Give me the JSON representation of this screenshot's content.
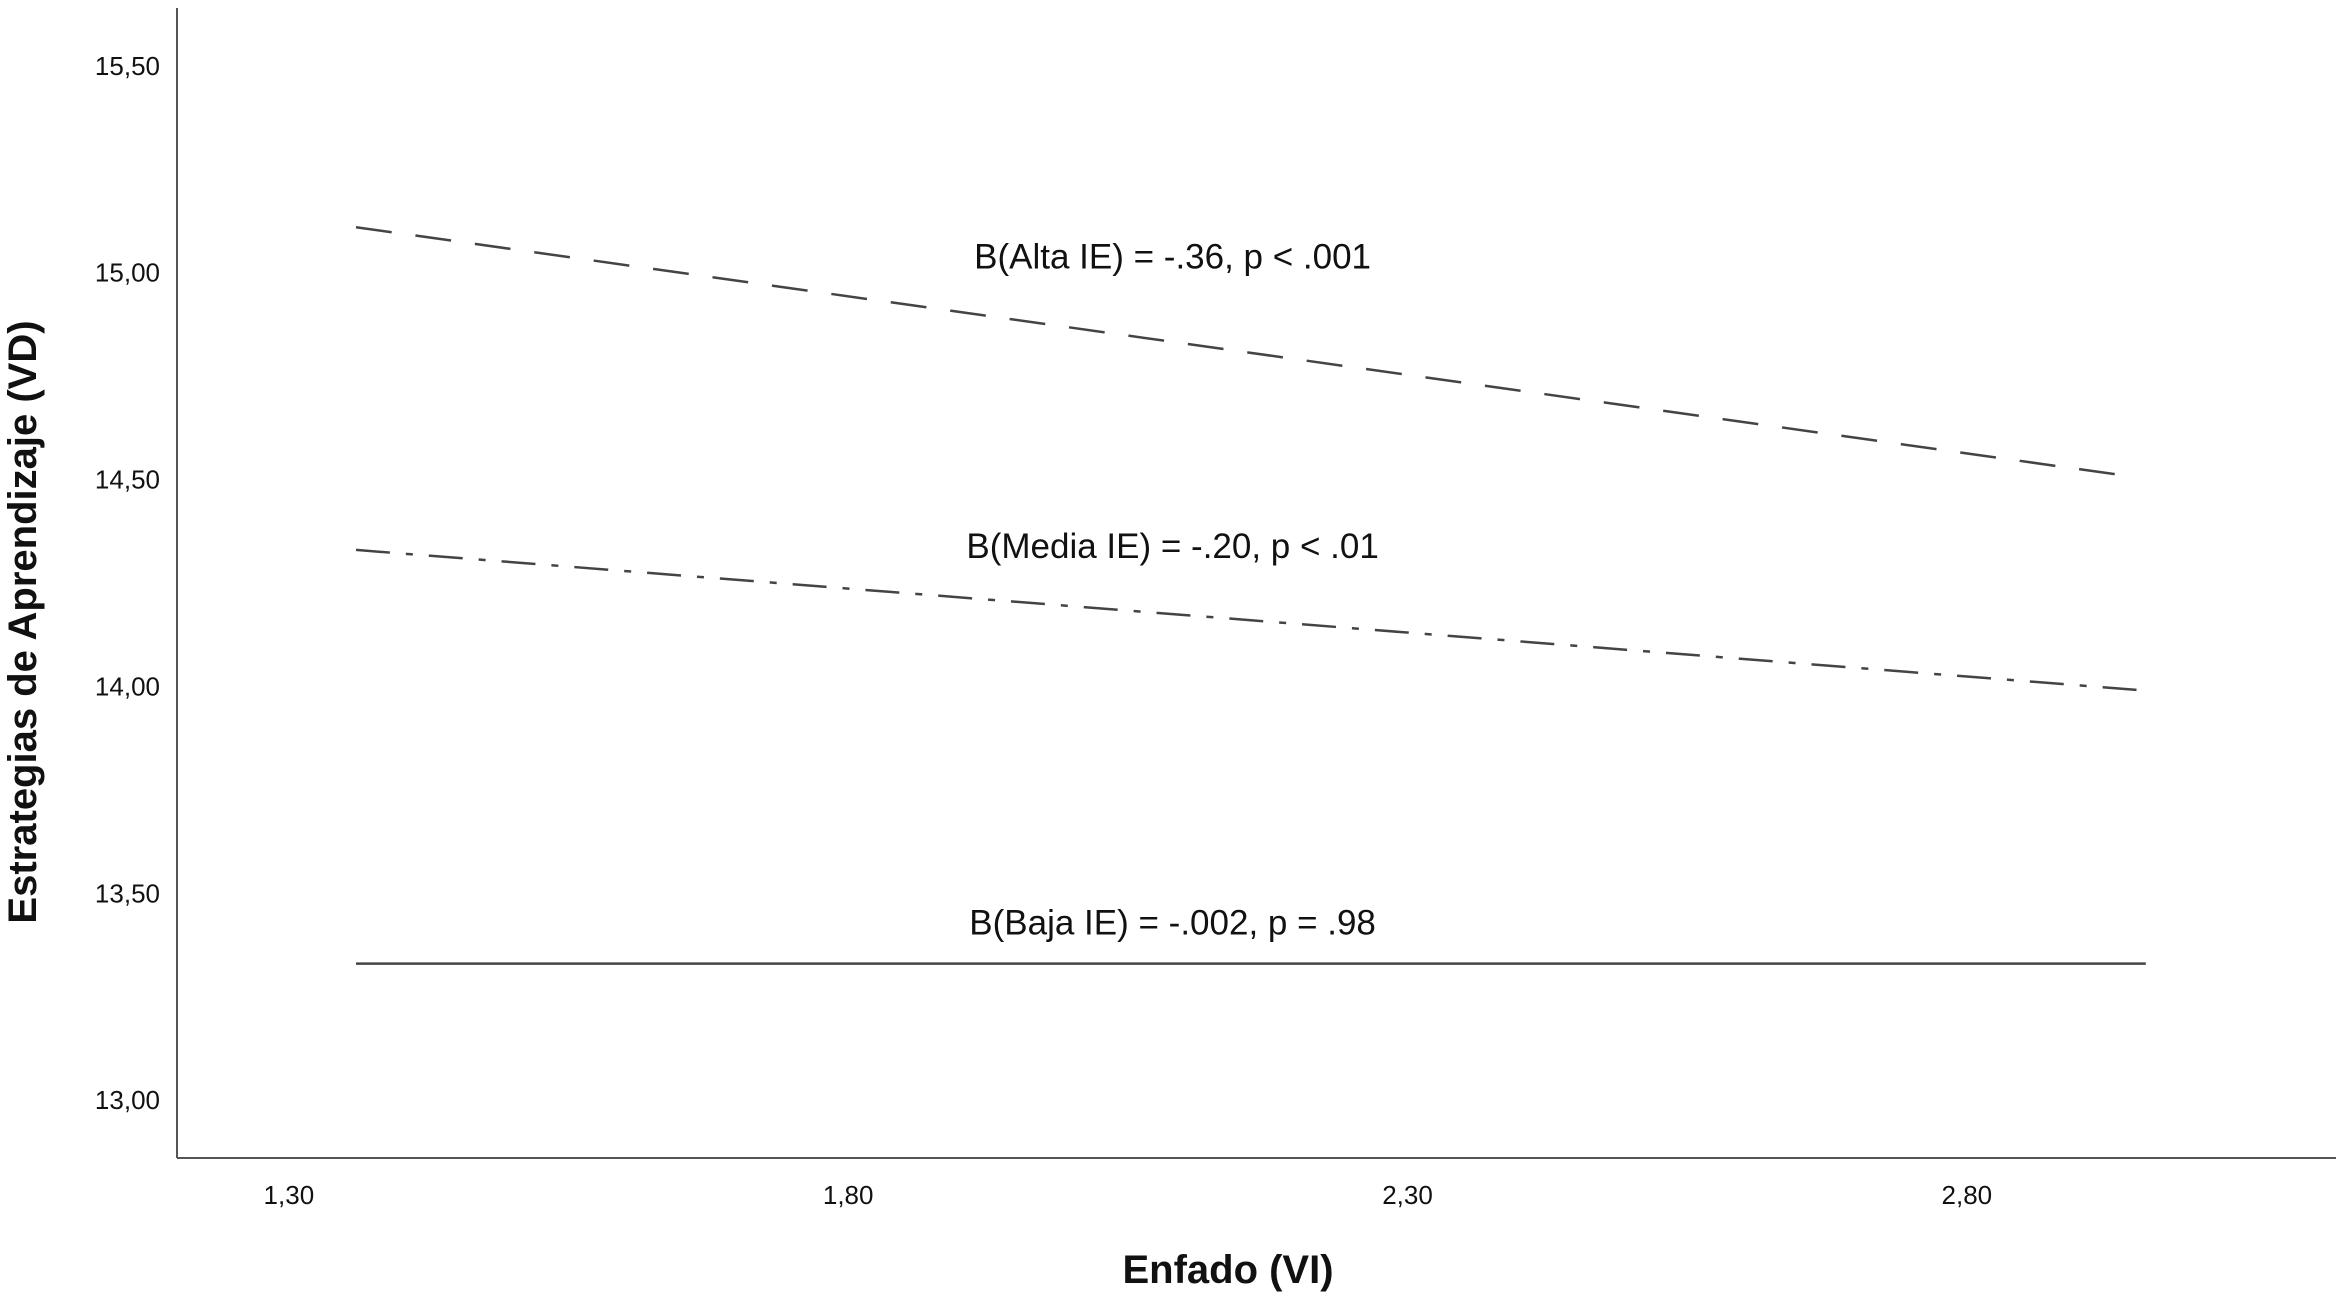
{
  "chart_data": {
    "type": "line",
    "title": "",
    "xlabel": "Enfado (VI)",
    "ylabel": "Estrategias de Aprendizaje (VD)",
    "xlim": [
      1.2,
      3.13
    ],
    "ylim": [
      12.86,
      15.64
    ],
    "x_ticks": [
      "1,30",
      "1,80",
      "2,30",
      "2,80"
    ],
    "y_ticks": [
      "13,00",
      "13,50",
      "14,00",
      "14,50",
      "15,00",
      "15,50"
    ],
    "grid": false,
    "legend": "none",
    "series": [
      {
        "style": "dashed",
        "color": "#444444",
        "x": [
          1.36,
          2.94
        ],
        "y": [
          15.11,
          14.51
        ]
      },
      {
        "style": "dashdot",
        "color": "#444444",
        "x": [
          1.36,
          2.96
        ],
        "y": [
          14.33,
          13.99
        ]
      },
      {
        "style": "solid",
        "color": "#444444",
        "x": [
          1.36,
          2.96
        ],
        "y": [
          13.33,
          13.33
        ]
      }
    ],
    "annotations": [
      {
        "text": "B(Alta IE) = -.36, p < .001",
        "x": 2.09,
        "y": 15.01
      },
      {
        "text": "B(Media IE) = -.20, p < .01",
        "x": 2.09,
        "y": 14.31
      },
      {
        "text": "B(Baja IE) = -.002, p = .98",
        "x": 2.09,
        "y": 13.4
      }
    ]
  }
}
